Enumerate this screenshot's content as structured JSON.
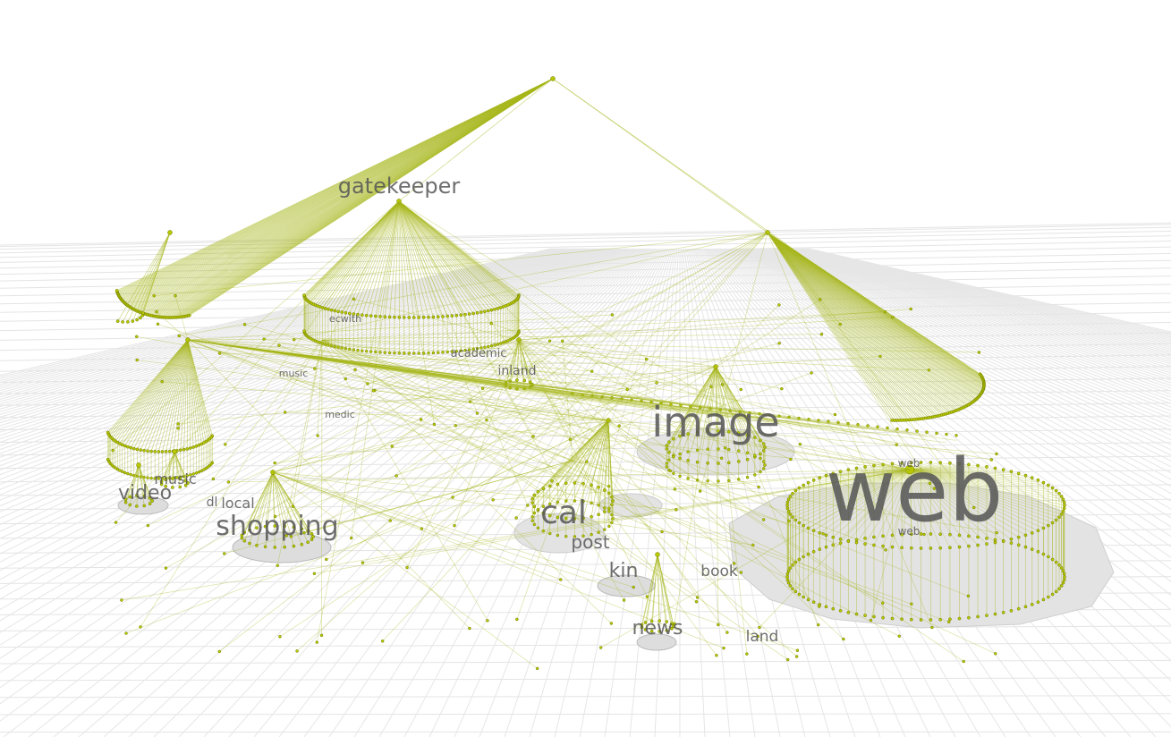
{
  "nodes": [
    {
      "label": "gatekeeper"
    },
    {
      "label": "image"
    },
    {
      "label": "web"
    },
    {
      "label": "web"
    },
    {
      "label": "web"
    },
    {
      "label": "shopping"
    },
    {
      "label": "video"
    },
    {
      "label": "music"
    },
    {
      "label": "dl"
    },
    {
      "label": "local"
    },
    {
      "label": "cal"
    },
    {
      "label": "post"
    },
    {
      "label": "kin"
    },
    {
      "label": "book"
    },
    {
      "label": "news"
    },
    {
      "label": "land"
    },
    {
      "label": "ecwith"
    },
    {
      "label": "academic"
    },
    {
      "label": "inland"
    },
    {
      "label": "music"
    },
    {
      "label": "medic"
    }
  ]
}
